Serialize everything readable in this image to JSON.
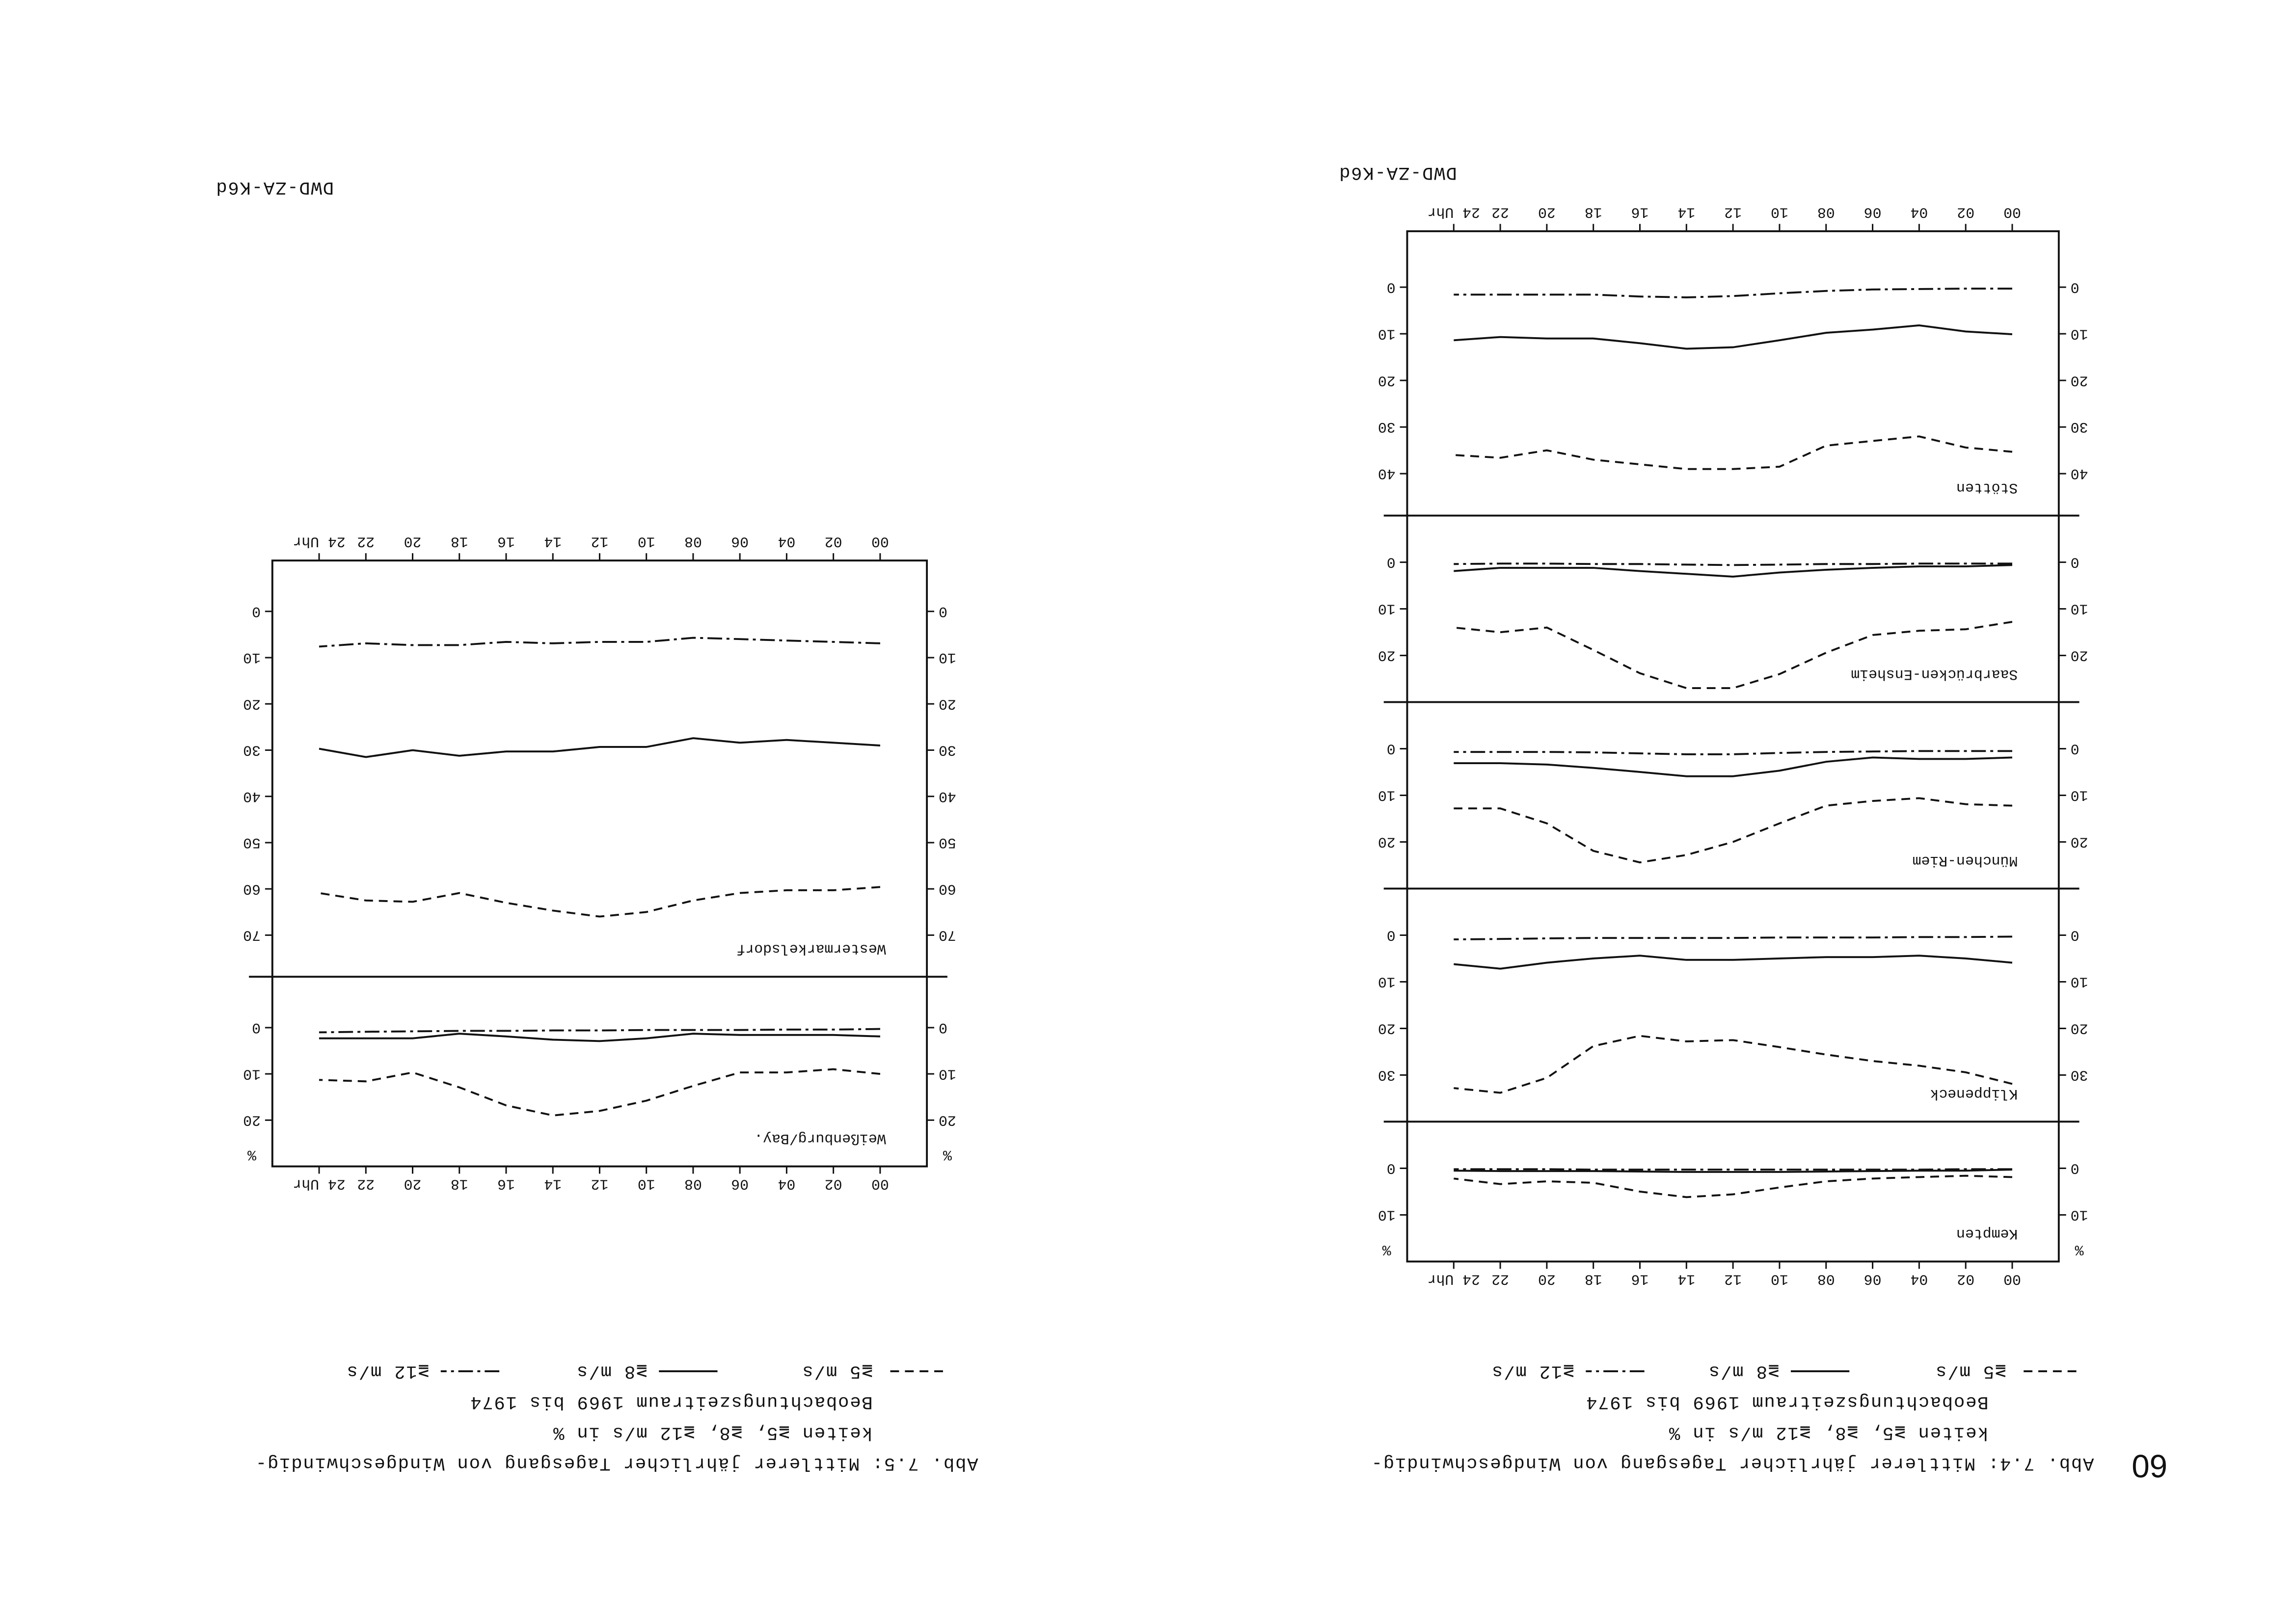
{
  "page_number": "60",
  "chart_data": [
    {
      "type": "line",
      "caption": [
        "Abb. 7.4: Mittlerer jährlicher Tagesgang von Windgeschwindig-",
        "keiten ≧5, ≧8, ≧12 m/s in %",
        "Beobachtungszeitraum 1969 bis 1974"
      ],
      "legend": [
        {
          "line": "dashed",
          "label": "≧5 m/s"
        },
        {
          "line": "solid",
          "label": "≧8 m/s"
        },
        {
          "line": "dashdot",
          "label": "≧12 m/s"
        }
      ],
      "stamp": "DWD-ZA-K6d",
      "y_unit": "%",
      "x": [
        0,
        2,
        4,
        6,
        8,
        10,
        12,
        14,
        16,
        18,
        20,
        22,
        24
      ],
      "xlim": [
        -2,
        26
      ],
      "xticks": [
        {
          "value": 0,
          "label": "00"
        },
        {
          "value": 2,
          "label": "02"
        },
        {
          "value": 4,
          "label": "04"
        },
        {
          "value": 6,
          "label": "06"
        },
        {
          "value": 8,
          "label": "08"
        },
        {
          "value": 10,
          "label": "10"
        },
        {
          "value": 12,
          "label": "12"
        },
        {
          "value": 14,
          "label": "14"
        },
        {
          "value": 16,
          "label": "16"
        },
        {
          "value": 18,
          "label": "18"
        },
        {
          "value": 20,
          "label": "20"
        },
        {
          "value": 22,
          "label": "22"
        },
        {
          "value": 24,
          "label": "24 Uhr"
        }
      ],
      "panels": [
        {
          "title": "Kempten",
          "ylim": [
            -10,
            20
          ],
          "yticks": [
            0,
            10
          ],
          "series": [
            {
              "line": "dashed",
              "values": [
                1.9,
                1.6,
                1.9,
                2.2,
                2.8,
                4.1,
                5.6,
                6.2,
                5.0,
                3.1,
                2.8,
                3.4,
                2.2
              ]
            },
            {
              "line": "solid",
              "values": [
                0.3,
                0.5,
                0.5,
                0.6,
                0.7,
                0.8,
                0.8,
                0.8,
                0.7,
                0.6,
                0.6,
                0.6,
                0.5
              ]
            },
            {
              "line": "dashdot",
              "values": [
                0.2,
                0.2,
                0.3,
                0.3,
                0.3,
                0.3,
                0.3,
                0.3,
                0.3,
                0.3,
                0.2,
                0.2,
                0.2
              ]
            }
          ]
        },
        {
          "title": "Klippeneck",
          "ylim": [
            -10,
            40
          ],
          "yticks": [
            0,
            10,
            20,
            30
          ],
          "series": [
            {
              "line": "dashed",
              "values": [
                31.9,
                29.4,
                28.0,
                27.0,
                25.6,
                24.0,
                22.5,
                22.8,
                21.6,
                23.8,
                30.6,
                33.8,
                32.8
              ]
            },
            {
              "line": "solid",
              "values": [
                5.9,
                5.0,
                4.4,
                4.7,
                4.7,
                5.0,
                5.3,
                5.3,
                4.4,
                5.0,
                5.9,
                7.2,
                6.2
              ]
            },
            {
              "line": "dashdot",
              "values": [
                0.3,
                0.4,
                0.4,
                0.5,
                0.5,
                0.5,
                0.6,
                0.6,
                0.6,
                0.6,
                0.7,
                0.8,
                0.9
              ]
            }
          ]
        },
        {
          "title": "München-Riem",
          "ylim": [
            -10,
            30
          ],
          "yticks": [
            0,
            10,
            20
          ],
          "series": [
            {
              "line": "dashed",
              "values": [
                12.2,
                11.9,
                10.6,
                11.2,
                12.2,
                16.0,
                20.0,
                22.8,
                24.4,
                21.9,
                16.0,
                12.8,
                12.8
              ]
            },
            {
              "line": "solid",
              "values": [
                1.9,
                2.2,
                2.2,
                1.9,
                2.8,
                4.7,
                5.9,
                5.9,
                5.0,
                4.1,
                3.4,
                3.1,
                3.1
              ]
            },
            {
              "line": "dashdot",
              "values": [
                0.5,
                0.5,
                0.5,
                0.6,
                0.7,
                0.9,
                1.2,
                1.2,
                1.0,
                0.8,
                0.7,
                0.7,
                0.7
              ]
            }
          ]
        },
        {
          "title": "Saarbrücken-Ensheim",
          "ylim": [
            -10,
            30
          ],
          "yticks": [
            0,
            10,
            20
          ],
          "series": [
            {
              "line": "dashed",
              "values": [
                12.8,
                14.4,
                14.7,
                15.6,
                19.4,
                24.0,
                27.0,
                27.0,
                23.8,
                18.8,
                14.0,
                15.0,
                14.0
              ]
            },
            {
              "line": "solid",
              "values": [
                0.6,
                0.9,
                0.9,
                1.2,
                1.6,
                2.2,
                3.1,
                2.5,
                1.9,
                1.2,
                1.2,
                1.2,
                1.9
              ]
            },
            {
              "line": "dashdot",
              "values": [
                0.3,
                0.3,
                0.3,
                0.4,
                0.4,
                0.5,
                0.6,
                0.5,
                0.4,
                0.4,
                0.3,
                0.3,
                0.4
              ]
            }
          ]
        },
        {
          "title": "Stötten",
          "ylim": [
            -12,
            49
          ],
          "yticks": [
            0,
            10,
            20,
            30,
            40
          ],
          "series": [
            {
              "line": "dashed",
              "values": [
                35.3,
                34.4,
                32.0,
                33.0,
                34.0,
                38.5,
                39.0,
                39.0,
                38.0,
                37.0,
                35.0,
                36.6,
                36.0
              ]
            },
            {
              "line": "solid",
              "values": [
                10.1,
                9.5,
                8.2,
                9.1,
                9.8,
                11.4,
                12.9,
                13.2,
                12.0,
                11.0,
                11.0,
                10.7,
                11.4
              ]
            },
            {
              "line": "dashdot",
              "values": [
                0.3,
                0.3,
                0.4,
                0.5,
                0.8,
                1.3,
                1.9,
                2.2,
                2.0,
                1.6,
                1.6,
                1.6,
                1.6
              ]
            }
          ]
        }
      ]
    },
    {
      "type": "line",
      "caption": [
        "Abb. 7.5: Mittlerer jährlicher Tagesgang von Windgeschwindig-",
        "keiten ≧5, ≧8, ≧12 m/s in %",
        "Beobachtungszeitraum 1969 bis 1974"
      ],
      "legend": [
        {
          "line": "dashed",
          "label": "≧5 m/s"
        },
        {
          "line": "solid",
          "label": "≧8 m/s"
        },
        {
          "line": "dashdot",
          "label": "≧12 m/s"
        }
      ],
      "stamp": "DWD-ZA-K6d",
      "y_unit": "%",
      "x": [
        0,
        2,
        4,
        6,
        8,
        10,
        12,
        14,
        16,
        18,
        20,
        22,
        24
      ],
      "xlim": [
        -2,
        26
      ],
      "xticks": [
        {
          "value": 0,
          "label": "00"
        },
        {
          "value": 2,
          "label": "02"
        },
        {
          "value": 4,
          "label": "04"
        },
        {
          "value": 6,
          "label": "06"
        },
        {
          "value": 8,
          "label": "08"
        },
        {
          "value": 10,
          "label": "10"
        },
        {
          "value": 12,
          "label": "12"
        },
        {
          "value": 14,
          "label": "14"
        },
        {
          "value": 16,
          "label": "16"
        },
        {
          "value": 18,
          "label": "18"
        },
        {
          "value": 20,
          "label": "20"
        },
        {
          "value": 22,
          "label": "22"
        },
        {
          "value": 24,
          "label": "24 Uhr"
        }
      ],
      "panels": [
        {
          "title": "Weißenburg/Bay.",
          "ylim": [
            -11,
            30
          ],
          "yticks": [
            0,
            10,
            20
          ],
          "series": [
            {
              "line": "dashed",
              "values": [
                10.0,
                9.0,
                9.7,
                9.7,
                12.6,
                15.8,
                18.0,
                19.0,
                16.8,
                12.9,
                9.7,
                11.6,
                11.3
              ]
            },
            {
              "line": "solid",
              "values": [
                1.9,
                1.6,
                1.6,
                1.6,
                1.3,
                2.3,
                2.9,
                2.6,
                1.9,
                1.3,
                2.3,
                2.3,
                2.3
              ]
            },
            {
              "line": "dashdot",
              "values": [
                0.3,
                0.4,
                0.4,
                0.5,
                0.5,
                0.5,
                0.6,
                0.6,
                0.7,
                0.7,
                0.8,
                0.9,
                1.0
              ]
            }
          ]
        },
        {
          "title": "Westermarkelsdorf",
          "ylim": [
            -11,
            79
          ],
          "yticks": [
            0,
            10,
            20,
            30,
            40,
            50,
            60,
            70
          ],
          "series": [
            {
              "line": "dashed",
              "values": [
                59.6,
                60.3,
                60.3,
                60.9,
                62.5,
                65.0,
                66.0,
                64.7,
                63.0,
                60.9,
                62.8,
                62.5,
                60.9
              ]
            },
            {
              "line": "solid",
              "values": [
                29.0,
                28.4,
                27.8,
                28.4,
                27.4,
                29.3,
                29.3,
                30.3,
                30.3,
                31.2,
                30.0,
                31.5,
                29.7
              ]
            },
            {
              "line": "dashdot",
              "values": [
                6.9,
                6.6,
                6.3,
                6.0,
                5.7,
                6.6,
                6.6,
                6.9,
                6.6,
                7.3,
                7.3,
                6.9,
                7.6
              ]
            }
          ]
        }
      ]
    }
  ]
}
